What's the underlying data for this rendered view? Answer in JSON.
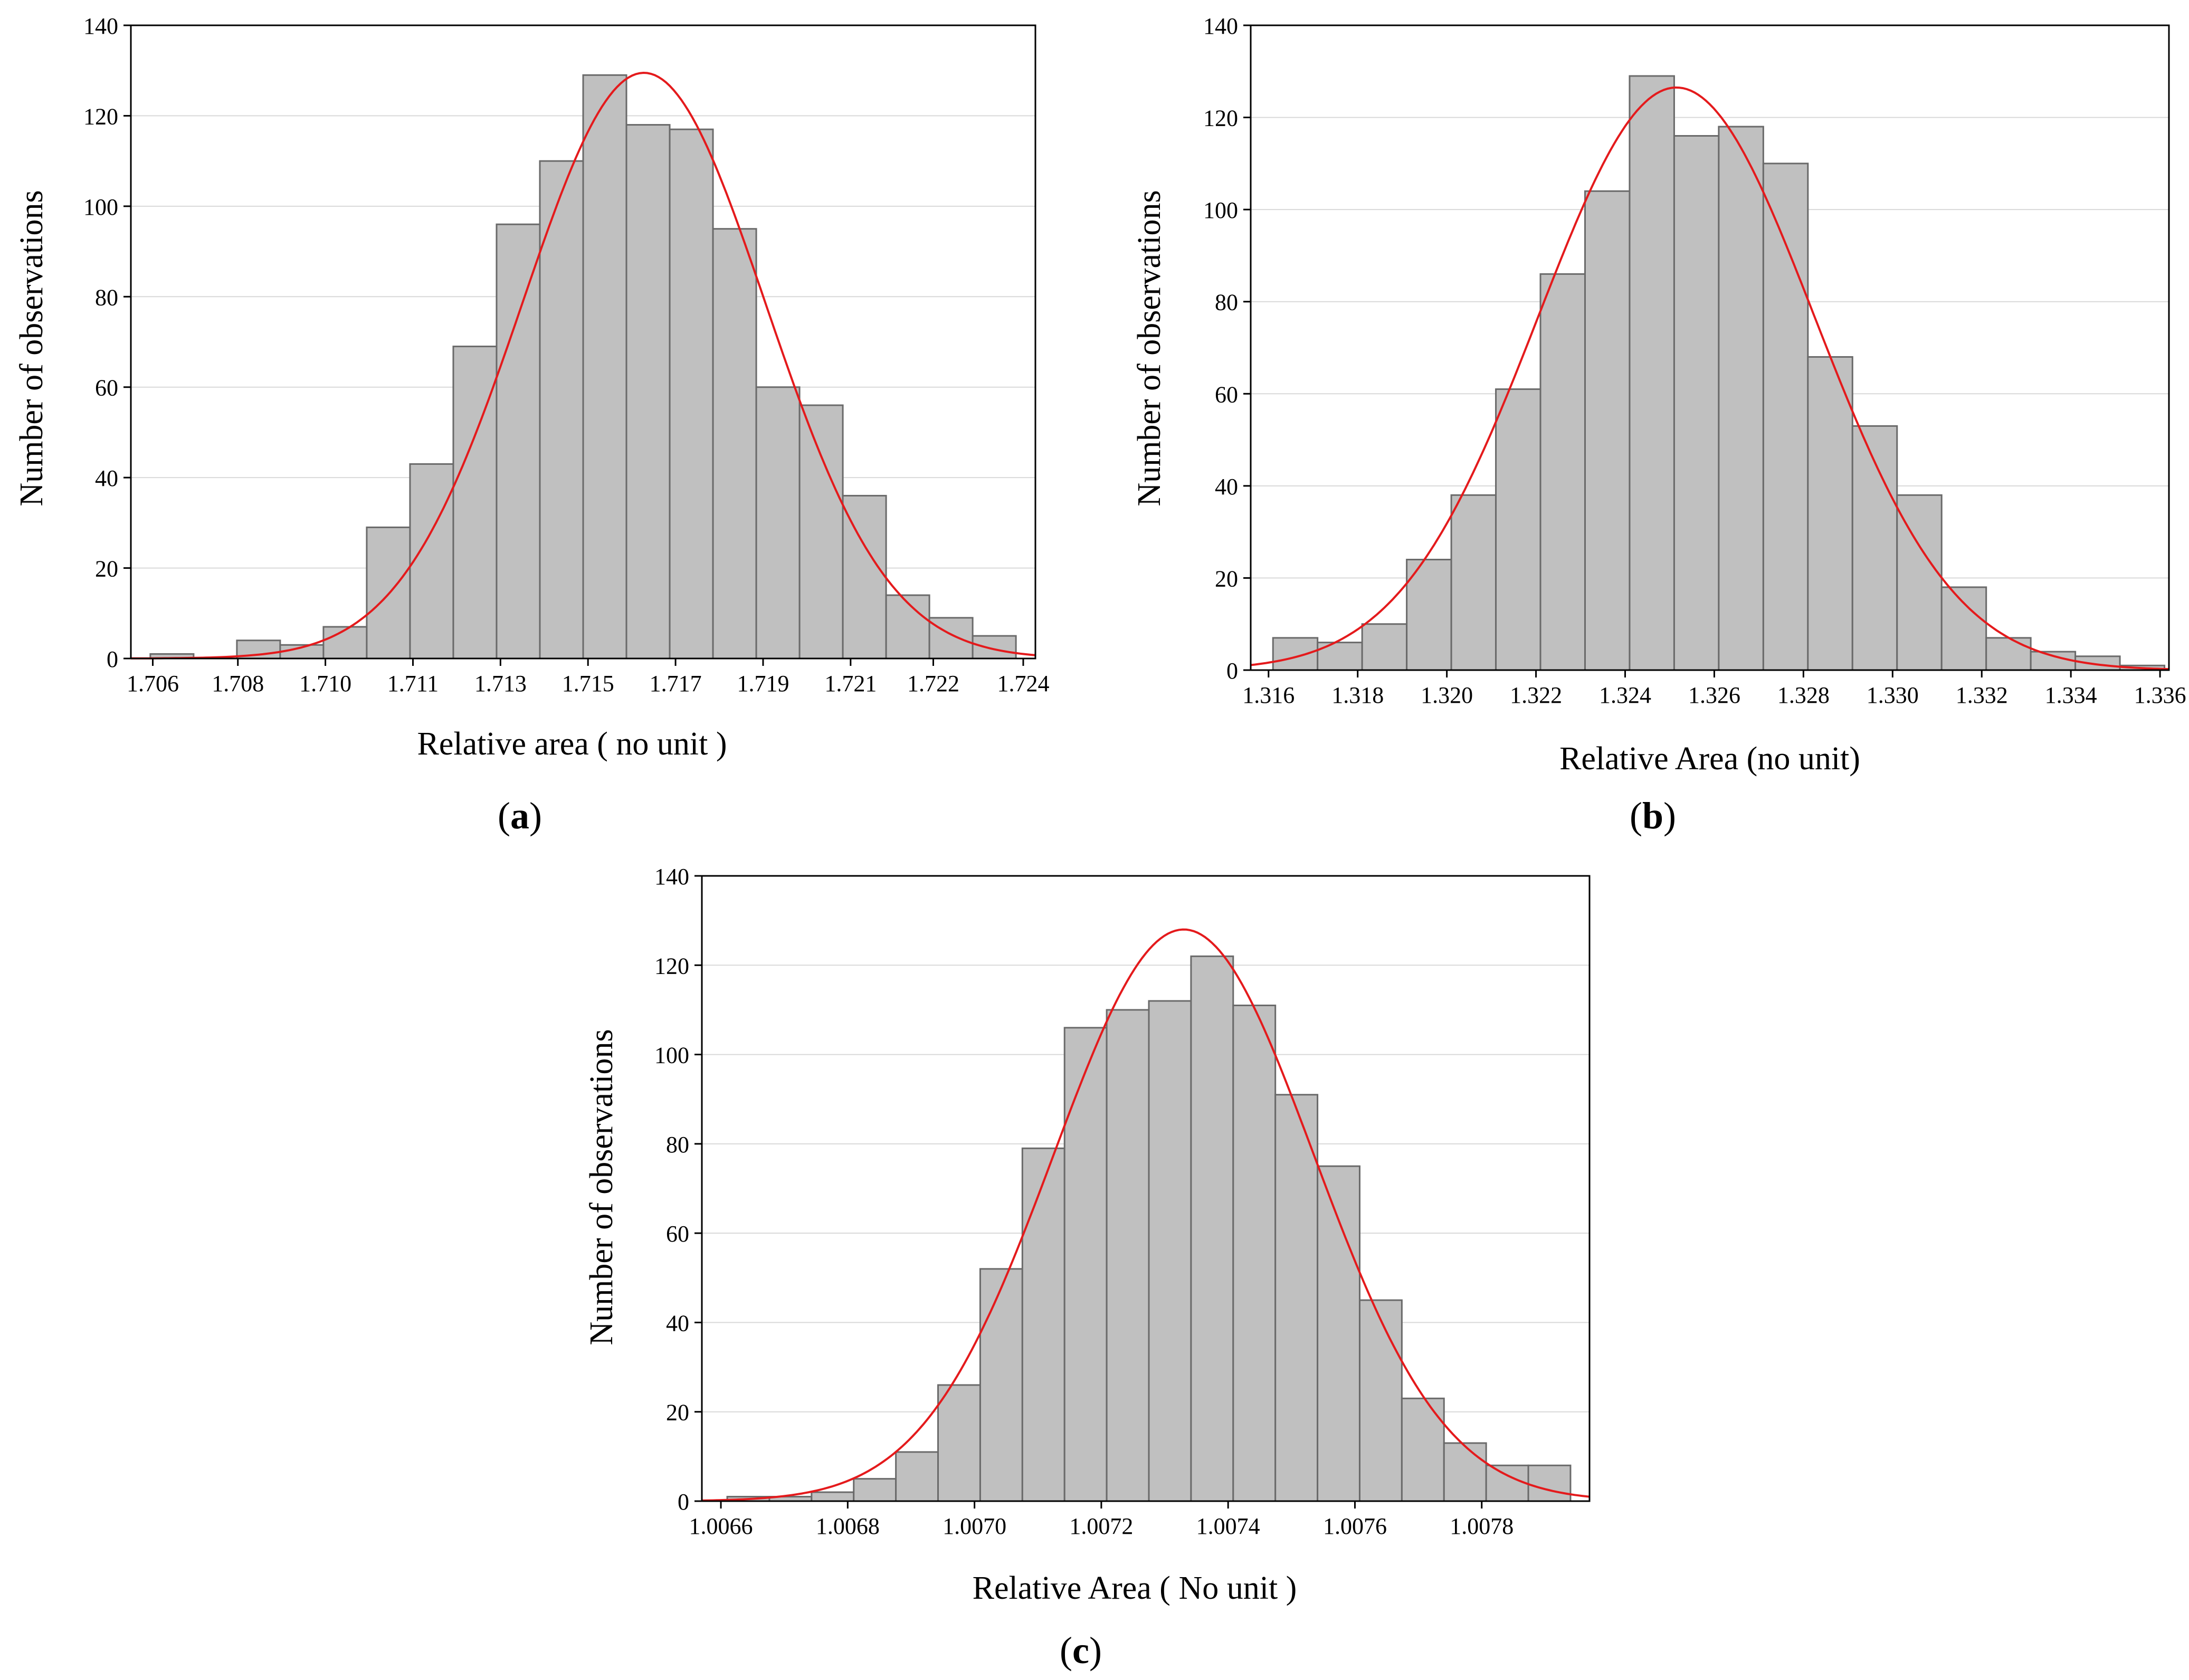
{
  "chart_data": [
    {
      "id": "a",
      "type": "bar",
      "panel_label": "a",
      "title": "",
      "xlabel": "Relative area ( no unit )",
      "ylabel": "Number of observations",
      "xlim": [
        1.7057,
        1.7243
      ],
      "ylim": [
        0,
        140
      ],
      "yticks": [
        0,
        20,
        40,
        60,
        80,
        100,
        120,
        140
      ],
      "xticks": [
        {
          "v": 1.70615,
          "label": "1.706"
        },
        {
          "v": 1.7079,
          "label": "1.708"
        },
        {
          "v": 1.7097,
          "label": "1.710"
        },
        {
          "v": 1.7115,
          "label": "1.711"
        },
        {
          "v": 1.7133,
          "label": "1.713"
        },
        {
          "v": 1.7151,
          "label": "1.715"
        },
        {
          "v": 1.7169,
          "label": "1.717"
        },
        {
          "v": 1.7187,
          "label": "1.719"
        },
        {
          "v": 1.7205,
          "label": "1.721"
        },
        {
          "v": 1.7222,
          "label": "1.722"
        },
        {
          "v": 1.72405,
          "label": "1.724"
        }
      ],
      "bin_start": 1.7061,
      "bin_width": 0.00089,
      "values": [
        1,
        0,
        4,
        3,
        7,
        29,
        43,
        69,
        96,
        110,
        129,
        118,
        117,
        95,
        60,
        56,
        36,
        14,
        9,
        5
      ],
      "fit": {
        "type": "normal",
        "mean": 1.71625,
        "sd": 0.0025,
        "peak": 129.5
      },
      "grid": true,
      "bar_color": "#c0c0c0",
      "bar_edge": "#6a6a6a",
      "fit_color": "#e41a1c"
    },
    {
      "id": "b",
      "type": "bar",
      "panel_label": "b",
      "title": "",
      "xlabel": "Relative Area (no unit)",
      "ylabel": "Number of observations",
      "xlim": [
        1.3158,
        1.3364
      ],
      "ylim": [
        0,
        140
      ],
      "yticks": [
        0,
        20,
        40,
        60,
        80,
        100,
        120,
        140
      ],
      "xticks": [
        {
          "v": 1.3162,
          "label": "1.316"
        },
        {
          "v": 1.3182,
          "label": "1.318"
        },
        {
          "v": 1.3202,
          "label": "1.320"
        },
        {
          "v": 1.3222,
          "label": "1.322"
        },
        {
          "v": 1.3242,
          "label": "1.324"
        },
        {
          "v": 1.3262,
          "label": "1.326"
        },
        {
          "v": 1.3282,
          "label": "1.328"
        },
        {
          "v": 1.3302,
          "label": "1.330"
        },
        {
          "v": 1.3322,
          "label": "1.332"
        },
        {
          "v": 1.3342,
          "label": "1.334"
        },
        {
          "v": 1.3362,
          "label": "1.336"
        }
      ],
      "bin_start": 1.3163,
      "bin_width": 0.001,
      "values": [
        7,
        6,
        10,
        24,
        38,
        61,
        86,
        104,
        129,
        116,
        118,
        110,
        68,
        53,
        38,
        18,
        7,
        4,
        3,
        1
      ],
      "fit": {
        "type": "normal",
        "mean": 1.32535,
        "sd": 0.0031,
        "peak": 126.5
      },
      "grid": true,
      "bar_color": "#c0c0c0",
      "bar_edge": "#6a6a6a",
      "fit_color": "#e41a1c"
    },
    {
      "id": "c",
      "type": "bar",
      "panel_label": "c",
      "title": "",
      "xlabel": "Relative Area ( No unit )",
      "ylabel": "Number of observations",
      "xlim": [
        1.00657,
        1.00797
      ],
      "ylim": [
        0,
        140
      ],
      "yticks": [
        0,
        20,
        40,
        60,
        80,
        100,
        120,
        140
      ],
      "xticks": [
        {
          "v": 1.0066,
          "label": "1.0066"
        },
        {
          "v": 1.0068,
          "label": "1.0068"
        },
        {
          "v": 1.007,
          "label": "1.0070"
        },
        {
          "v": 1.0072,
          "label": "1.0072"
        },
        {
          "v": 1.0074,
          "label": "1.0074"
        },
        {
          "v": 1.0076,
          "label": "1.0076"
        },
        {
          "v": 1.0078,
          "label": "1.0078"
        }
      ],
      "bin_start": 1.00661,
      "bin_width": 6.65e-05,
      "values": [
        1,
        1,
        2,
        5,
        11,
        26,
        52,
        79,
        106,
        110,
        112,
        122,
        111,
        91,
        75,
        45,
        23,
        13,
        8,
        8
      ],
      "fit": {
        "type": "normal",
        "mean": 1.00733,
        "sd": 0.000205,
        "peak": 128
      },
      "grid": true,
      "bar_color": "#c0c0c0",
      "bar_edge": "#6a6a6a",
      "fit_color": "#e41a1c"
    }
  ]
}
